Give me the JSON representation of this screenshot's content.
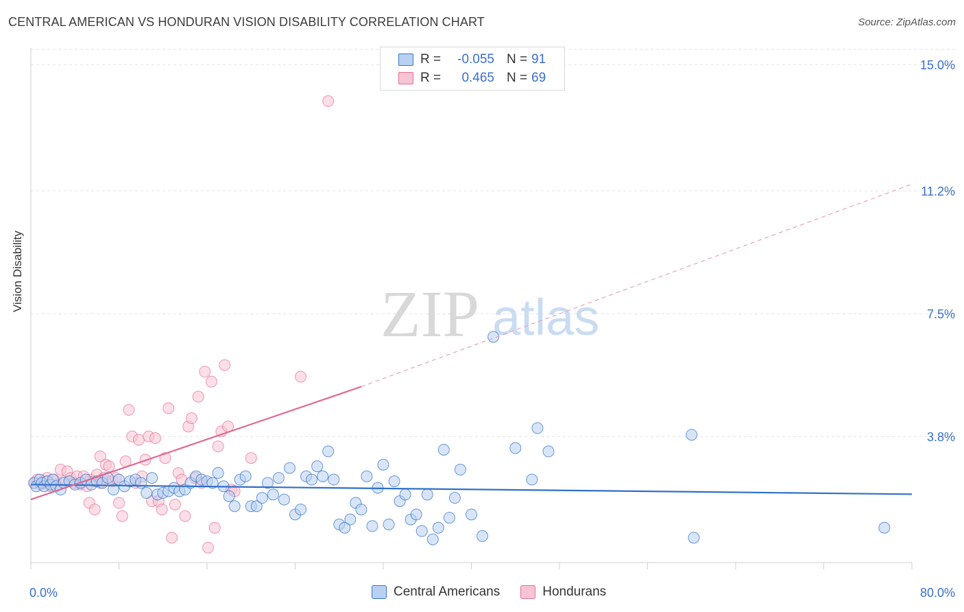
{
  "header": {
    "title": "CENTRAL AMERICAN VS HONDURAN VISION DISABILITY CORRELATION CHART",
    "source": "Source: ZipAtlas.com"
  },
  "colors": {
    "blue": "#3a75c4",
    "blue_fill": "#b8d0f2",
    "pink": "#e56e96",
    "pink_fill": "#f7c4d4",
    "value_text": "#3a6fd0"
  },
  "legend": {
    "rows": [
      {
        "r_label": "R =",
        "r_value": "-0.055",
        "n_label": "N =",
        "n_value": "91"
      },
      {
        "r_label": "R =",
        "r_value": "0.465",
        "n_label": "N =",
        "n_value": "69"
      }
    ]
  },
  "bottom_legend": {
    "items": [
      "Central Americans",
      "Hondurans"
    ]
  },
  "watermark": {
    "zip": "ZIP",
    "atlas": "atlas"
  },
  "chart_data": {
    "type": "scatter",
    "title": "CENTRAL AMERICAN VS HONDURAN VISION DISABILITY CORRELATION CHART",
    "ylabel": "Vision Disability",
    "xlabel": "",
    "xlim": [
      0,
      80
    ],
    "ylim": [
      0,
      15.5
    ],
    "x_tick_labels": [
      "0.0%",
      "80.0%"
    ],
    "y_ticks": [
      3.8,
      7.5,
      11.2,
      15.0
    ],
    "y_tick_labels": [
      "3.8%",
      "7.5%",
      "11.2%",
      "15.0%"
    ],
    "grid": "horizontal dashed",
    "legend_position": "top-center",
    "series": [
      {
        "name": "Central Americans",
        "r": -0.055,
        "n": 91,
        "trend": {
          "x0": 0,
          "y0": 2.35,
          "x1": 80,
          "y1": 2.06
        },
        "points": [
          [
            0.3,
            2.4
          ],
          [
            0.5,
            2.3
          ],
          [
            0.8,
            2.5
          ],
          [
            1.0,
            2.4
          ],
          [
            1.2,
            2.3
          ],
          [
            1.5,
            2.45
          ],
          [
            1.8,
            2.35
          ],
          [
            2.0,
            2.5
          ],
          [
            2.3,
            2.3
          ],
          [
            2.7,
            2.2
          ],
          [
            3.0,
            2.4
          ],
          [
            3.5,
            2.45
          ],
          [
            4.0,
            2.35
          ],
          [
            4.5,
            2.4
          ],
          [
            5.0,
            2.5
          ],
          [
            5.5,
            2.35
          ],
          [
            6.0,
            2.45
          ],
          [
            6.5,
            2.4
          ],
          [
            7.0,
            2.55
          ],
          [
            7.5,
            2.2
          ],
          [
            8.0,
            2.5
          ],
          [
            8.5,
            2.3
          ],
          [
            9.0,
            2.45
          ],
          [
            9.5,
            2.5
          ],
          [
            10.0,
            2.4
          ],
          [
            10.5,
            2.1
          ],
          [
            11.0,
            2.55
          ],
          [
            11.5,
            2.05
          ],
          [
            12.0,
            2.1
          ],
          [
            12.5,
            2.15
          ],
          [
            13.0,
            2.25
          ],
          [
            13.5,
            2.15
          ],
          [
            14.0,
            2.2
          ],
          [
            14.5,
            2.4
          ],
          [
            15.0,
            2.6
          ],
          [
            15.5,
            2.5
          ],
          [
            16.0,
            2.45
          ],
          [
            16.5,
            2.4
          ],
          [
            17.0,
            2.7
          ],
          [
            17.5,
            2.3
          ],
          [
            18.0,
            2.0
          ],
          [
            18.5,
            1.7
          ],
          [
            19.0,
            2.5
          ],
          [
            19.5,
            2.6
          ],
          [
            20.0,
            1.7
          ],
          [
            20.5,
            1.7
          ],
          [
            21.0,
            1.95
          ],
          [
            21.5,
            2.4
          ],
          [
            22.0,
            2.05
          ],
          [
            22.5,
            2.55
          ],
          [
            23.0,
            1.9
          ],
          [
            23.5,
            2.85
          ],
          [
            24.0,
            1.45
          ],
          [
            24.5,
            1.6
          ],
          [
            25.0,
            2.6
          ],
          [
            25.5,
            2.5
          ],
          [
            26.0,
            2.9
          ],
          [
            26.5,
            2.6
          ],
          [
            27.0,
            3.35
          ],
          [
            27.5,
            2.5
          ],
          [
            28.0,
            1.15
          ],
          [
            28.5,
            1.05
          ],
          [
            29.0,
            1.3
          ],
          [
            29.5,
            1.8
          ],
          [
            30.0,
            1.6
          ],
          [
            30.5,
            2.6
          ],
          [
            31.0,
            1.1
          ],
          [
            31.5,
            2.25
          ],
          [
            32.0,
            2.95
          ],
          [
            32.5,
            1.15
          ],
          [
            33.0,
            2.45
          ],
          [
            33.5,
            1.85
          ],
          [
            34.0,
            2.05
          ],
          [
            34.5,
            1.3
          ],
          [
            35.0,
            1.45
          ],
          [
            35.5,
            0.95
          ],
          [
            36.0,
            2.05
          ],
          [
            36.5,
            0.7
          ],
          [
            37.0,
            1.05
          ],
          [
            37.5,
            3.4
          ],
          [
            38.0,
            1.35
          ],
          [
            38.5,
            1.95
          ],
          [
            39.0,
            2.8
          ],
          [
            40.0,
            1.45
          ],
          [
            41.0,
            0.8
          ],
          [
            42.0,
            6.8
          ],
          [
            44.0,
            3.45
          ],
          [
            45.5,
            2.5
          ],
          [
            46.0,
            4.05
          ],
          [
            47.0,
            3.35
          ],
          [
            60.0,
            3.85
          ],
          [
            60.2,
            0.75
          ],
          [
            77.5,
            1.05
          ]
        ]
      },
      {
        "name": "Hondurans",
        "r": 0.465,
        "n": 69,
        "trend": {
          "x0": 0,
          "y0": 1.9,
          "x1": 30,
          "y1": 5.3,
          "dashed_to": {
            "x": 80,
            "y": 11.4
          }
        },
        "points": [
          [
            0.3,
            2.4
          ],
          [
            0.6,
            2.5
          ],
          [
            0.9,
            2.35
          ],
          [
            1.2,
            2.45
          ],
          [
            1.5,
            2.55
          ],
          [
            1.8,
            2.3
          ],
          [
            2.1,
            2.5
          ],
          [
            2.4,
            2.35
          ],
          [
            2.7,
            2.8
          ],
          [
            3.0,
            2.45
          ],
          [
            3.3,
            2.75
          ],
          [
            3.6,
            2.55
          ],
          [
            3.9,
            2.4
          ],
          [
            4.2,
            2.6
          ],
          [
            4.5,
            2.35
          ],
          [
            4.8,
            2.6
          ],
          [
            5.1,
            2.3
          ],
          [
            5.4,
            2.5
          ],
          [
            5.7,
            2.45
          ],
          [
            6.0,
            2.65
          ],
          [
            6.3,
            2.4
          ],
          [
            6.6,
            2.55
          ],
          [
            5.3,
            1.8
          ],
          [
            5.8,
            1.6
          ],
          [
            6.3,
            3.2
          ],
          [
            6.5,
            2.5
          ],
          [
            6.8,
            2.95
          ],
          [
            7.1,
            2.9
          ],
          [
            7.4,
            2.45
          ],
          [
            7.7,
            2.55
          ],
          [
            8.0,
            1.8
          ],
          [
            8.3,
            1.4
          ],
          [
            8.6,
            3.05
          ],
          [
            8.9,
            4.6
          ],
          [
            9.2,
            3.8
          ],
          [
            9.5,
            2.4
          ],
          [
            9.8,
            3.7
          ],
          [
            10.1,
            2.6
          ],
          [
            10.4,
            3.1
          ],
          [
            10.7,
            3.8
          ],
          [
            11.0,
            1.85
          ],
          [
            11.3,
            3.75
          ],
          [
            11.6,
            1.85
          ],
          [
            11.9,
            1.6
          ],
          [
            12.2,
            3.15
          ],
          [
            12.5,
            4.65
          ],
          [
            12.8,
            0.75
          ],
          [
            13.1,
            1.75
          ],
          [
            13.4,
            2.7
          ],
          [
            13.7,
            2.5
          ],
          [
            14.0,
            1.4
          ],
          [
            14.3,
            4.1
          ],
          [
            14.6,
            4.35
          ],
          [
            14.9,
            2.55
          ],
          [
            15.2,
            5.0
          ],
          [
            15.5,
            2.4
          ],
          [
            15.8,
            5.75
          ],
          [
            16.1,
            0.45
          ],
          [
            16.4,
            5.45
          ],
          [
            16.7,
            1.05
          ],
          [
            17.0,
            3.5
          ],
          [
            17.3,
            3.95
          ],
          [
            17.6,
            5.95
          ],
          [
            17.9,
            4.1
          ],
          [
            18.2,
            2.2
          ],
          [
            18.5,
            2.15
          ],
          [
            20.0,
            3.15
          ],
          [
            24.5,
            5.6
          ],
          [
            27.0,
            13.9
          ]
        ]
      }
    ]
  }
}
